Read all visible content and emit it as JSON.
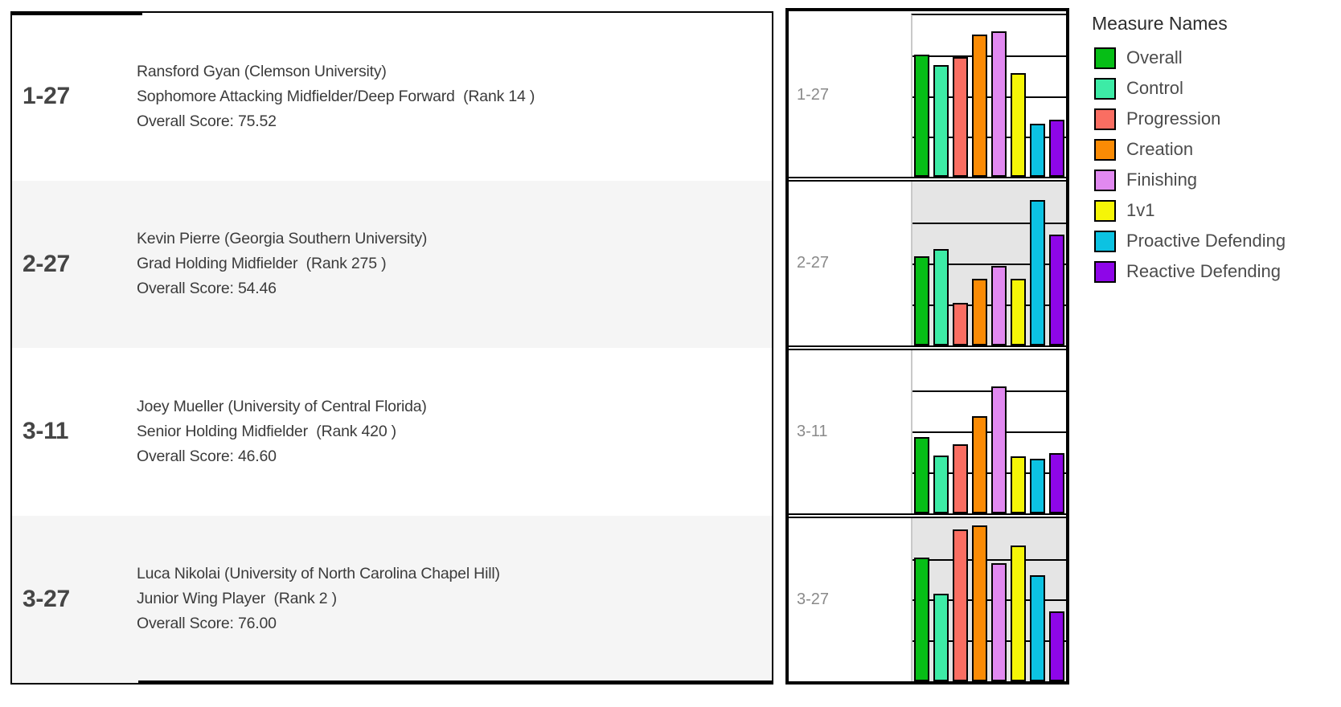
{
  "legend": {
    "title": "Measure Names",
    "items": [
      {
        "label": "Overall",
        "color": "#06BE16"
      },
      {
        "label": "Control",
        "color": "#3DEBA6"
      },
      {
        "label": "Progression",
        "color": "#FA6E62"
      },
      {
        "label": "Creation",
        "color": "#FA8B05"
      },
      {
        "label": "Finishing",
        "color": "#E189F0"
      },
      {
        "label": "1v1",
        "color": "#F5F507"
      },
      {
        "label": "Proactive Defending",
        "color": "#0CC2E2"
      },
      {
        "label": "Reactive Defending",
        "color": "#8E06E8"
      }
    ]
  },
  "players": [
    {
      "id": "1-27",
      "name_line": "Ransford Gyan (Clemson University)",
      "position_line": "Sophomore Attacking Midfielder/Deep Forward  (Rank 14 )",
      "score_line": "Overall Score: 75.52"
    },
    {
      "id": "2-27",
      "name_line": "Kevin Pierre (Georgia Southern University)",
      "position_line": "Grad Holding Midfielder  (Rank 275 )",
      "score_line": "Overall Score: 54.46"
    },
    {
      "id": "3-11",
      "name_line": "Joey Mueller (University of Central Florida)",
      "position_line": "Senior Holding Midfielder  (Rank 420 )",
      "score_line": "Overall Score: 46.60"
    },
    {
      "id": "3-27",
      "name_line": "Luca Nikolai (University of North Carolina Chapel Hill)",
      "position_line": "Junior Wing Player  (Rank 2 )",
      "score_line": "Overall Score: 76.00"
    }
  ],
  "chart_data": {
    "type": "bar",
    "categories": [
      "Overall",
      "Control",
      "Progression",
      "Creation",
      "Finishing",
      "1v1",
      "Proactive Defending",
      "Reactive Defending"
    ],
    "rows": [
      {
        "id": "1-27",
        "values": [
          75.52,
          69,
          74,
          88,
          90,
          64,
          33,
          35.5
        ]
      },
      {
        "id": "2-27",
        "values": [
          54.46,
          59,
          26,
          40.5,
          48.5,
          40.5,
          89,
          67.5
        ]
      },
      {
        "id": "3-11",
        "values": [
          46.6,
          35.5,
          42,
          59.5,
          77.5,
          35,
          33.5,
          37
        ]
      },
      {
        "id": "3-27",
        "values": [
          76,
          53.5,
          93,
          95.5,
          72.5,
          83,
          65,
          43
        ]
      }
    ],
    "ylim": [
      0,
      100
    ],
    "gridlines": [
      25,
      50,
      75
    ],
    "grid": true,
    "legend_position": "right",
    "title": "",
    "xlabel": "",
    "ylabel": ""
  }
}
